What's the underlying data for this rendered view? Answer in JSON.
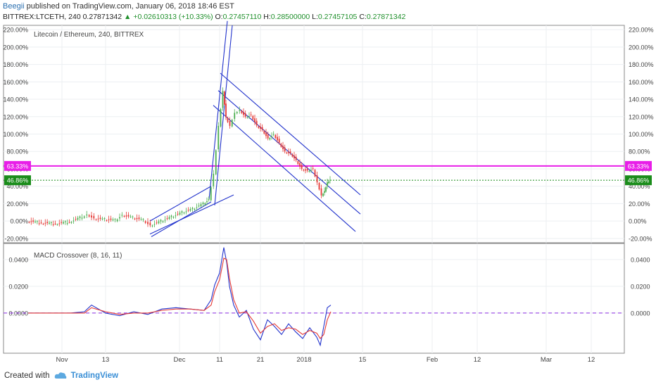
{
  "header": {
    "author": "Beegii",
    "published": "published on TradingView.com, January 06, 2018 18:46 EST",
    "symbol": "BITTREX:LTCETH, 240",
    "last": "0.27871342",
    "change_arrow": "▲",
    "change": "+0.02610313 (+10.33%)",
    "o_label": "O:",
    "o": "0.27457110",
    "h_label": "H:",
    "h": "0.28500000",
    "l_label": "L:",
    "l": "0.27457105",
    "c_label": "C:",
    "c": "0.27871342"
  },
  "main_title": "Litecoin / Ethereum, 240, BITTREX",
  "macd_title": "MACD Crossover (8, 16, 11)",
  "footer": {
    "created": "Created with",
    "brand": "TradingView"
  },
  "colors": {
    "up": "#4caf50",
    "down": "#e53935",
    "channel": "#2233cc",
    "level_magenta": "#e81ee8",
    "level_green": "#1a8c1a",
    "macd": "#2233cc",
    "signal": "#e53935",
    "zero": "#8a2be2"
  },
  "chart_data": [
    {
      "type": "line",
      "title": "Litecoin / Ethereum, 240, BITTREX",
      "y_axis_ticks": [
        "220.00%",
        "200.00%",
        "180.00%",
        "160.00%",
        "140.00%",
        "120.00%",
        "100.00%",
        "80.00%",
        "60.00%",
        "40.00%",
        "20.00%",
        "0.00%",
        "-20.00%"
      ],
      "ylim": [
        -25,
        225
      ],
      "x_ticks": [
        "Nov",
        "13",
        "Dec",
        "11",
        "21",
        "2018",
        "15",
        "Feb",
        "12",
        "Mar",
        "12"
      ],
      "x_tick_pos": [
        88,
        150,
        255,
        312,
        370,
        432,
        515,
        614,
        678,
        776,
        840
      ],
      "price_labels": [
        {
          "text": "63.33%",
          "value": 63.33,
          "color": "#e81ee8"
        },
        {
          "text": "46.86%",
          "value": 46.86,
          "color": "#1a8c1a"
        }
      ],
      "series": [
        {
          "x": [
            40,
            60,
            80,
            100,
            118,
            125,
            135,
            150,
            165,
            175,
            190,
            205,
            215,
            230,
            245,
            260,
            275,
            290,
            298,
            305,
            312,
            318,
            322,
            328,
            335,
            342,
            350,
            358,
            366,
            374,
            382,
            390,
            398,
            406,
            414,
            422,
            430,
            438,
            446,
            452,
            458,
            462,
            466,
            470
          ],
          "values": [
            0,
            -2,
            -3,
            -1,
            5,
            8,
            3,
            2,
            1,
            7,
            4,
            1,
            -5,
            0,
            5,
            10,
            14,
            20,
            25,
            55,
            110,
            150,
            120,
            110,
            125,
            128,
            120,
            122,
            110,
            105,
            95,
            100,
            90,
            80,
            78,
            70,
            60,
            58,
            60,
            45,
            30,
            35,
            45,
            48
          ]
        }
      ],
      "channels": [
        {
          "x": [
            213,
            300
          ],
          "values": [
            0,
            40
          ]
        },
        {
          "x": [
            213,
            332
          ],
          "values": [
            -15,
            30
          ]
        },
        {
          "x": [
            215,
            300
          ],
          "values": [
            -18,
            22
          ]
        },
        {
          "x": [
            297,
            323
          ],
          "values": [
            25,
            230
          ]
        },
        {
          "x": [
            305,
            330
          ],
          "values": [
            18,
            225
          ]
        },
        {
          "x": [
            313,
            512
          ],
          "values": [
            170,
            30
          ]
        },
        {
          "x": [
            310,
            512
          ],
          "values": [
            150,
            8
          ]
        },
        {
          "x": [
            303,
            505
          ],
          "values": [
            133,
            -12
          ]
        }
      ]
    },
    {
      "type": "line",
      "title": "MACD Crossover (8, 16, 11)",
      "y_axis_ticks": [
        "0.0400",
        "0.0200",
        "0.0000"
      ],
      "ylim": [
        -0.03,
        0.052
      ],
      "zero_line": 0,
      "series": [
        {
          "name": "",
          "x": [
            40,
            70,
            100,
            120,
            130,
            150,
            170,
            190,
            210,
            230,
            250,
            270,
            290,
            300,
            305,
            312,
            318,
            322,
            326,
            332,
            340,
            350,
            360,
            370,
            380,
            390,
            400,
            410,
            420,
            430,
            440,
            450,
            455,
            460,
            465,
            470
          ],
          "values": [
            0,
            0,
            0,
            0.001,
            0.006,
            0,
            -0.002,
            0.001,
            -0.001,
            0.003,
            0.004,
            0.003,
            0.002,
            0.01,
            0.021,
            0.03,
            0.049,
            0.038,
            0.02,
            0.006,
            -0.003,
            0.002,
            -0.012,
            -0.02,
            -0.005,
            -0.01,
            -0.016,
            -0.008,
            -0.014,
            -0.019,
            -0.011,
            -0.018,
            -0.024,
            -0.01,
            0.004,
            0.006
          ]
        },
        {
          "name": "",
          "x": [
            40,
            70,
            100,
            120,
            130,
            150,
            170,
            190,
            210,
            230,
            250,
            270,
            290,
            300,
            305,
            312,
            318,
            322,
            326,
            332,
            340,
            350,
            360,
            370,
            380,
            390,
            400,
            410,
            420,
            430,
            440,
            450,
            455,
            460,
            465,
            470
          ],
          "values": [
            0,
            0,
            0,
            0,
            0.004,
            0.001,
            -0.001,
            0,
            0,
            0.002,
            0.003,
            0.003,
            0.002,
            0.006,
            0.016,
            0.025,
            0.041,
            0.04,
            0.026,
            0.01,
            0,
            0.001,
            -0.006,
            -0.015,
            -0.01,
            -0.008,
            -0.013,
            -0.011,
            -0.012,
            -0.016,
            -0.013,
            -0.015,
            -0.019,
            -0.016,
            -0.005,
            0.001
          ]
        }
      ]
    }
  ]
}
